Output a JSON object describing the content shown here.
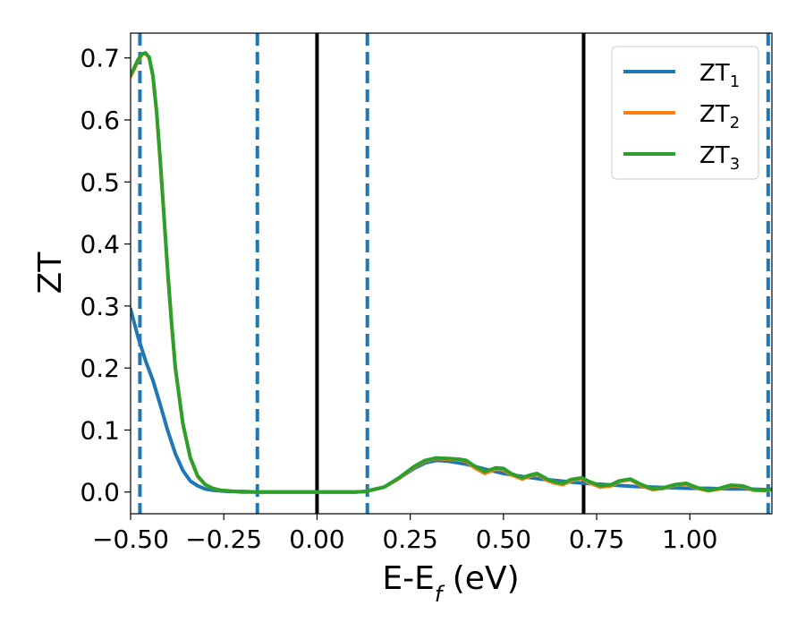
{
  "chart_data": {
    "type": "line",
    "xlabel": "E-E",
    "xlabel_sub": "f",
    "xlabel_unit": " (eV)",
    "ylabel": "ZT",
    "xlim": [
      -0.5,
      1.22
    ],
    "ylim": [
      -0.035,
      0.74
    ],
    "xticks": [
      -0.5,
      -0.25,
      0.0,
      0.25,
      0.5,
      0.75,
      1.0
    ],
    "xtick_labels": [
      "−0.50",
      "−0.25",
      "0.00",
      "0.25",
      "0.50",
      "0.75",
      "1.00"
    ],
    "yticks": [
      0.0,
      0.1,
      0.2,
      0.3,
      0.4,
      0.5,
      0.6,
      0.7
    ],
    "ytick_labels": [
      "0.0",
      "0.1",
      "0.2",
      "0.3",
      "0.4",
      "0.5",
      "0.6",
      "0.7"
    ],
    "grid": false,
    "legend_position": "top-right",
    "vlines_solid": [
      0.0,
      0.715
    ],
    "vlines_dashed": [
      -0.475,
      -0.16,
      0.135,
      1.21
    ],
    "series": [
      {
        "name": "ZT",
        "name_sub": "1",
        "color": "#1f77b4",
        "x": [
          -0.5,
          -0.48,
          -0.46,
          -0.44,
          -0.42,
          -0.4,
          -0.38,
          -0.36,
          -0.34,
          -0.32,
          -0.3,
          -0.28,
          -0.26,
          -0.24,
          -0.22,
          -0.2,
          -0.16,
          -0.1,
          0.0,
          0.1,
          0.13,
          0.18,
          0.22,
          0.26,
          0.29,
          0.32,
          0.35,
          0.4,
          0.45,
          0.5,
          0.55,
          0.6,
          0.65,
          0.7,
          0.75,
          0.8,
          0.85,
          0.9,
          0.95,
          1.0,
          1.05,
          1.1,
          1.15,
          1.2,
          1.22
        ],
        "y": [
          0.295,
          0.25,
          0.212,
          0.18,
          0.14,
          0.098,
          0.062,
          0.035,
          0.018,
          0.01,
          0.005,
          0.003,
          0.002,
          0.001,
          0.001,
          0.0,
          0.0,
          0.0,
          0.0,
          0.0,
          0.001,
          0.008,
          0.022,
          0.038,
          0.047,
          0.051,
          0.05,
          0.045,
          0.037,
          0.03,
          0.025,
          0.021,
          0.018,
          0.015,
          0.013,
          0.011,
          0.009,
          0.008,
          0.007,
          0.006,
          0.006,
          0.005,
          0.005,
          0.004,
          0.004
        ]
      },
      {
        "name": "ZT",
        "name_sub": "2",
        "color": "#ff7f0e",
        "x": [
          -0.5,
          -0.48,
          -0.47,
          -0.46,
          -0.45,
          -0.44,
          -0.43,
          -0.42,
          -0.41,
          -0.4,
          -0.39,
          -0.38,
          -0.36,
          -0.34,
          -0.32,
          -0.3,
          -0.28,
          -0.26,
          -0.24,
          -0.22,
          -0.2,
          -0.16,
          -0.1,
          0.0,
          0.1,
          0.13,
          0.18,
          0.22,
          0.26,
          0.29,
          0.32,
          0.35,
          0.38,
          0.4,
          0.42,
          0.45,
          0.48,
          0.5,
          0.52,
          0.55,
          0.57,
          0.59,
          0.62,
          0.64,
          0.66,
          0.68,
          0.71,
          0.73,
          0.76,
          0.79,
          0.81,
          0.84,
          0.87,
          0.9,
          0.93,
          0.96,
          0.99,
          1.02,
          1.05,
          1.08,
          1.11,
          1.14,
          1.17,
          1.2,
          1.22
        ],
        "y": [
          0.67,
          0.695,
          0.705,
          0.708,
          0.7,
          0.67,
          0.61,
          0.53,
          0.44,
          0.35,
          0.27,
          0.2,
          0.11,
          0.055,
          0.025,
          0.012,
          0.006,
          0.003,
          0.002,
          0.001,
          0.001,
          0.0,
          0.0,
          0.0,
          0.0,
          0.001,
          0.008,
          0.022,
          0.04,
          0.05,
          0.054,
          0.053,
          0.052,
          0.05,
          0.04,
          0.03,
          0.037,
          0.036,
          0.028,
          0.021,
          0.025,
          0.029,
          0.018,
          0.014,
          0.012,
          0.018,
          0.022,
          0.015,
          0.008,
          0.01,
          0.017,
          0.02,
          0.01,
          0.004,
          0.006,
          0.011,
          0.013,
          0.006,
          0.002,
          0.005,
          0.01,
          0.009,
          0.003,
          0.002,
          0.004
        ]
      },
      {
        "name": "ZT",
        "name_sub": "3",
        "color": "#2ca02c",
        "x": [
          -0.5,
          -0.48,
          -0.47,
          -0.46,
          -0.45,
          -0.44,
          -0.43,
          -0.42,
          -0.41,
          -0.4,
          -0.39,
          -0.38,
          -0.36,
          -0.34,
          -0.32,
          -0.3,
          -0.28,
          -0.26,
          -0.24,
          -0.22,
          -0.2,
          -0.16,
          -0.1,
          0.0,
          0.1,
          0.13,
          0.18,
          0.22,
          0.26,
          0.29,
          0.32,
          0.35,
          0.38,
          0.4,
          0.42,
          0.45,
          0.48,
          0.5,
          0.52,
          0.55,
          0.57,
          0.59,
          0.62,
          0.64,
          0.66,
          0.68,
          0.71,
          0.73,
          0.76,
          0.79,
          0.81,
          0.84,
          0.87,
          0.9,
          0.93,
          0.96,
          0.99,
          1.02,
          1.05,
          1.08,
          1.11,
          1.14,
          1.17,
          1.2,
          1.22
        ],
        "y": [
          0.672,
          0.697,
          0.706,
          0.708,
          0.701,
          0.671,
          0.612,
          0.532,
          0.442,
          0.352,
          0.272,
          0.201,
          0.111,
          0.056,
          0.026,
          0.012,
          0.006,
          0.003,
          0.002,
          0.001,
          0.001,
          0.0,
          0.0,
          0.0,
          0.0,
          0.001,
          0.008,
          0.023,
          0.041,
          0.051,
          0.055,
          0.054,
          0.053,
          0.051,
          0.043,
          0.033,
          0.039,
          0.038,
          0.03,
          0.023,
          0.027,
          0.03,
          0.02,
          0.016,
          0.014,
          0.02,
          0.023,
          0.017,
          0.01,
          0.012,
          0.018,
          0.021,
          0.012,
          0.005,
          0.007,
          0.012,
          0.014,
          0.007,
          0.003,
          0.006,
          0.011,
          0.01,
          0.004,
          0.003,
          0.005
        ]
      }
    ]
  }
}
